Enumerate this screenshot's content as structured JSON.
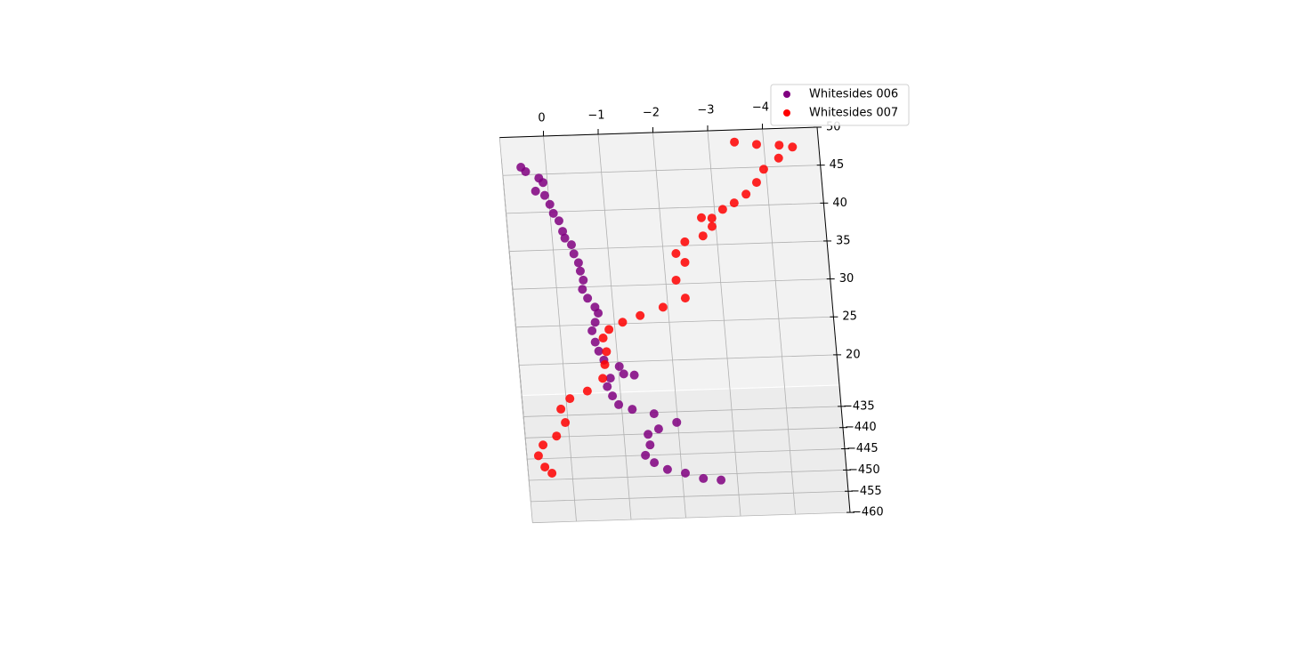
{
  "chart_data": {
    "type": "scatter3d",
    "xlim": [
      0.8,
      -5
    ],
    "ylim": [
      -460,
      -430
    ],
    "zlim": [
      16,
      50
    ],
    "xticks": [
      0,
      {
        "value": -1,
        "label": "−1"
      },
      {
        "value": -2,
        "label": "−2"
      },
      {
        "value": -3,
        "label": "−3"
      },
      {
        "value": -4,
        "label": "−4"
      }
    ],
    "yticks": [
      {
        "value": -435,
        "label": "−435"
      },
      {
        "value": -440,
        "label": "−440"
      },
      {
        "value": -445,
        "label": "−445"
      },
      {
        "value": -450,
        "label": "−450"
      },
      {
        "value": -455,
        "label": "−455"
      },
      {
        "value": -460,
        "label": "−460"
      }
    ],
    "zticks": [
      20,
      25,
      30,
      35,
      40,
      45,
      50
    ],
    "grid": true,
    "legend": "upper right",
    "series": [
      {
        "name": "Whitesides 006",
        "color": "#800080",
        "x": [
          0.46,
          0.38,
          0.15,
          0.08,
          0.23,
          0.07,
          -0.01,
          -0.06,
          -0.15,
          -0.2,
          -0.23,
          -0.34,
          -0.37,
          -0.44,
          -0.46,
          -0.5,
          -0.47,
          -0.55,
          -0.67,
          -0.72,
          -0.65,
          -0.58,
          -0.62,
          -0.67,
          -0.75,
          -1.02,
          -1.28,
          -1.09,
          -0.84,
          -0.77,
          -0.85,
          -0.95,
          -1.19,
          -1.58,
          -1.98,
          -1.64,
          -1.44,
          -1.46,
          -1.36,
          -1.51,
          -1.74,
          -2.06,
          -2.38,
          -2.7
        ],
        "y": [
          -430,
          -430,
          -430,
          -430,
          -430,
          -430,
          -430,
          -430,
          -430,
          -430,
          -430,
          -430,
          -430,
          -430,
          -430,
          -430,
          -430,
          -430,
          -430,
          -430,
          -430,
          -430,
          -430,
          -430,
          -430,
          -430,
          -430,
          -430,
          -430,
          -430,
          -430.8,
          -432.9,
          -434.1,
          -435.3,
          -437.5,
          -438.9,
          -440.1,
          -442.6,
          -445,
          -446.8,
          -448.5,
          -449.5,
          -450.9,
          -451.4
        ],
        "z": [
          46,
          45.4,
          44.5,
          43.9,
          42.8,
          42.2,
          41,
          39.8,
          38.8,
          37.4,
          36.5,
          35.6,
          34.4,
          33.2,
          32.1,
          30.9,
          29.7,
          28.5,
          27.3,
          26.5,
          25.3,
          24.2,
          22.7,
          21.5,
          20.3,
          19.4,
          18.2,
          18.4,
          17.9,
          16.8,
          16,
          16,
          16,
          16,
          16,
          16,
          16,
          16,
          16,
          16,
          16,
          16,
          16,
          16
        ]
      },
      {
        "name": "Whitesides 007",
        "color": "#ff0000",
        "x": [
          -3.47,
          -3.87,
          -4.28,
          -4.52,
          -4.25,
          -3.96,
          -3.81,
          -3.6,
          -3.37,
          -3.15,
          -2.94,
          -2.75,
          -2.93,
          -2.75,
          -2.41,
          -2.23,
          -2.38,
          -2.19,
          -2.33,
          -1.91,
          -1.48,
          -1.15,
          -0.89,
          -0.77,
          -0.81,
          -0.76,
          -0.7,
          -0.4,
          -0.07,
          0.11,
          0.05,
          0.23,
          0.49,
          0.59,
          0.49,
          0.37
        ],
        "y": [
          -430,
          -430,
          -430,
          -430,
          -430,
          -430,
          -430,
          -430,
          -430,
          -430,
          -430,
          -430,
          -430,
          -430,
          -430,
          -430,
          -430,
          -430,
          -430,
          -430,
          -430,
          -430,
          -430,
          -430,
          -430,
          -430,
          -430,
          -430,
          -431.1,
          -433.5,
          -436.7,
          -439.8,
          -441.8,
          -444.3,
          -447,
          -448.5
        ],
        "z": [
          48.4,
          48,
          47.8,
          47.5,
          46.1,
          44.7,
          43,
          41.5,
          40.4,
          39.6,
          38.5,
          38.6,
          37.4,
          36.2,
          35.5,
          34,
          32.8,
          30.5,
          28.1,
          27,
          26,
          25.2,
          24.3,
          23.2,
          21.4,
          19.7,
          17.9,
          16.3,
          16,
          16,
          16,
          16,
          16,
          16,
          16,
          16
        ]
      }
    ]
  }
}
